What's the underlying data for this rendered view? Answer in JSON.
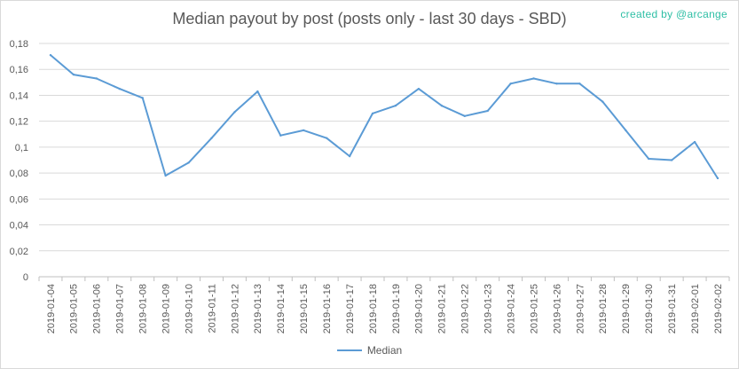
{
  "title": "Median payout by post (posts only - last 30 days - SBD)",
  "credit": "created by @arcange",
  "colors": {
    "series": "#5b9bd5",
    "grid": "#d9d9d9",
    "text": "#595959",
    "credit": "#2ebfa5"
  },
  "chart_data": {
    "type": "line",
    "title": "Median payout by post (posts only - last 30 days - SBD)",
    "xlabel": "",
    "ylabel": "",
    "ylim": [
      0,
      0.18
    ],
    "yticks": [
      0,
      0.02,
      0.04,
      0.06,
      0.08,
      0.1,
      0.12,
      0.14,
      0.16,
      0.18
    ],
    "ytick_labels": [
      "0",
      "0,02",
      "0,04",
      "0,06",
      "0,08",
      "0,1",
      "0,12",
      "0,14",
      "0,16",
      "0,18"
    ],
    "grid": "horizontal",
    "legend_position": "bottom",
    "categories": [
      "2019-01-04",
      "2019-01-05",
      "2019-01-06",
      "2019-01-07",
      "2019-01-08",
      "2019-01-09",
      "2019-01-10",
      "2019-01-11",
      "2019-01-12",
      "2019-01-13",
      "2019-01-14",
      "2019-01-15",
      "2019-01-16",
      "2019-01-17",
      "2019-01-18",
      "2019-01-19",
      "2019-01-20",
      "2019-01-21",
      "2019-01-22",
      "2019-01-23",
      "2019-01-24",
      "2019-01-25",
      "2019-01-26",
      "2019-01-27",
      "2019-01-28",
      "2019-01-29",
      "2019-01-30",
      "2019-01-31",
      "2019-02-01",
      "2019-02-02"
    ],
    "series": [
      {
        "name": "Median",
        "values": [
          0.171,
          0.156,
          0.153,
          0.145,
          0.138,
          0.078,
          0.088,
          0.107,
          0.127,
          0.143,
          0.109,
          0.113,
          0.107,
          0.093,
          0.126,
          0.132,
          0.145,
          0.132,
          0.124,
          0.128,
          0.149,
          0.153,
          0.149,
          0.149,
          0.135,
          0.113,
          0.091,
          0.09,
          0.104,
          0.076
        ]
      }
    ]
  }
}
